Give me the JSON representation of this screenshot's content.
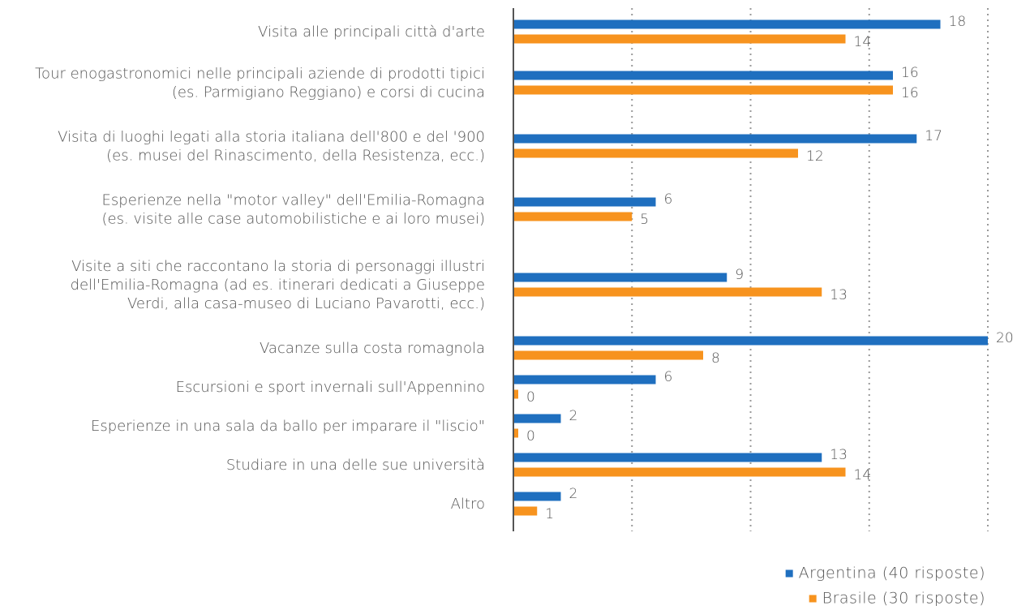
{
  "chart_data": {
    "type": "hbar",
    "categories": [
      [
        "Visita alle principali città d'arte"
      ],
      [
        "Tour enogastronomici nelle principali aziende di prodotti tipici",
        "(es. Parmigiano Reggiano) e corsi di cucina"
      ],
      [
        "Visita di luoghi legati alla storia italiana dell'800 e del '900",
        "(es. musei del Rinascimento, della Resistenza, ecc.)"
      ],
      [
        "Esperienze nella \"motor valley\" dell'Emilia-Romagna",
        "(es. visite alle case automobilistiche e ai loro musei)"
      ],
      [
        "Visite a siti che raccontano la storia di personaggi illustri",
        "dell'Emilia-Romagna (ad es. itinerari dedicati a Giuseppe",
        "Verdi, alla casa-museo di Luciano Pavarotti, ecc.)"
      ],
      [
        "Vacanze sulla costa romagnola"
      ],
      [
        "Escursioni e sport invernali sull'Appennino"
      ],
      [
        "Esperienze in una sala da ballo per imparare il \"liscio\""
      ],
      [
        "Studiare in una delle sue università"
      ],
      [
        "Altro"
      ]
    ],
    "series": [
      {
        "name": "Argentina (40 risposte)",
        "color": "#1f6fbf",
        "values": [
          18,
          16,
          17,
          6,
          9,
          20,
          6,
          2,
          13,
          2
        ]
      },
      {
        "name": "Brasile (30 risposte)",
        "color": "#f7931e",
        "values": [
          14,
          16,
          12,
          5,
          13,
          8,
          0,
          0,
          14,
          1
        ]
      }
    ],
    "xlim": [
      0,
      20
    ],
    "xticks": [
      0,
      5,
      10,
      15,
      20
    ],
    "grid": true
  }
}
